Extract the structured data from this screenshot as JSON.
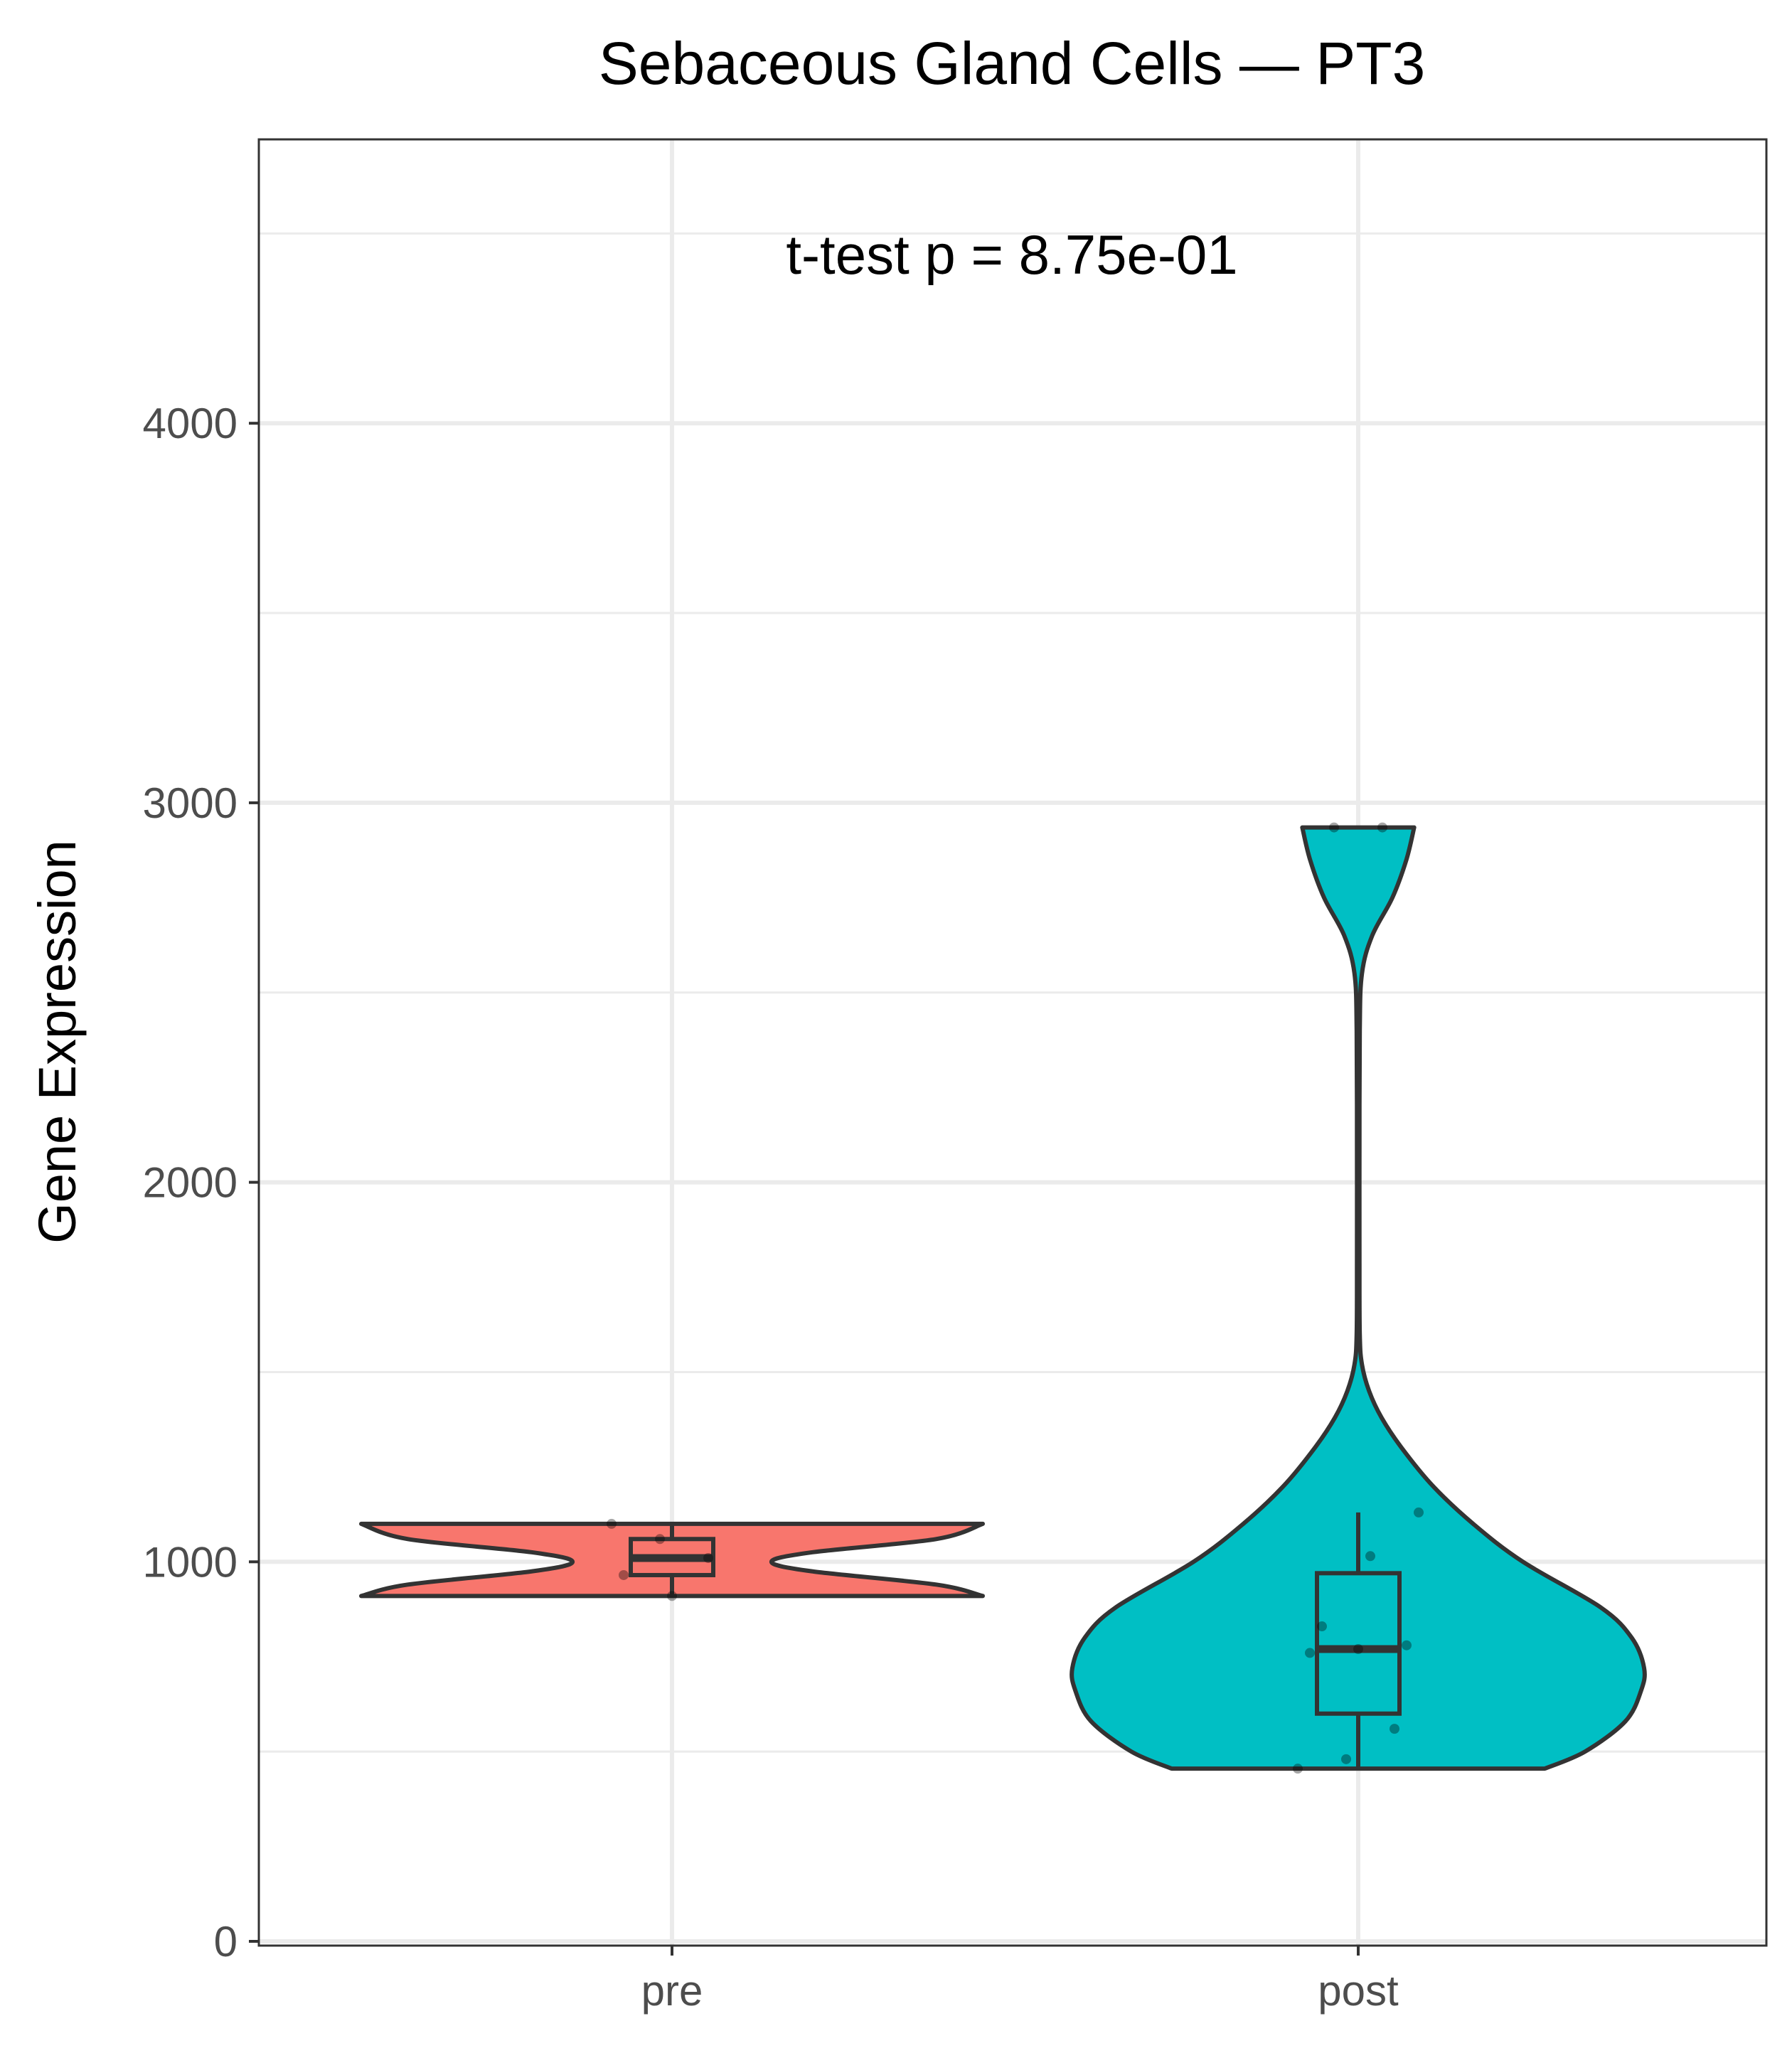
{
  "chart_data": {
    "type": "violin",
    "title": "Sebaceous Gland Cells — PT3",
    "xlabel": "",
    "ylabel": "Gene Expression",
    "ylim": [
      0,
      4700
    ],
    "yticks": [
      0,
      1000,
      2000,
      3000,
      4000
    ],
    "grid": true,
    "annotation": "t-test p = 8.75e-01",
    "colors": {
      "pre": "#F8766D",
      "post": "#00BFC4",
      "outline": "#333333",
      "panel_border": "#333333",
      "grid": "#ebebeb"
    },
    "categories": [
      "pre",
      "post"
    ],
    "groups": [
      {
        "name": "pre",
        "fill": "#F8766D",
        "violin_range": [
          910,
          1100
        ],
        "violin_density": [
          [
            910,
            1.0
          ],
          [
            940,
            0.85
          ],
          [
            975,
            0.45
          ],
          [
            1000,
            0.32
          ],
          [
            1025,
            0.45
          ],
          [
            1060,
            0.85
          ],
          [
            1100,
            1.0
          ]
        ],
        "box": {
          "q1": 965,
          "median": 1010,
          "q3": 1060,
          "whisker_low": 910,
          "whisker_high": 1100
        },
        "points": [
          1100,
          1060,
          1010,
          965,
          910
        ]
      },
      {
        "name": "post",
        "fill": "#00BFC4",
        "violin_range": [
          455,
          2935
        ],
        "violin_density": [
          [
            455,
            0.6
          ],
          [
            500,
            0.73
          ],
          [
            580,
            0.86
          ],
          [
            660,
            0.91
          ],
          [
            720,
            0.92
          ],
          [
            800,
            0.88
          ],
          [
            880,
            0.78
          ],
          [
            1000,
            0.53
          ],
          [
            1100,
            0.37
          ],
          [
            1200,
            0.24
          ],
          [
            1300,
            0.14
          ],
          [
            1380,
            0.075
          ],
          [
            1450,
            0.035
          ],
          [
            1520,
            0.012
          ],
          [
            1600,
            0.005
          ],
          [
            1800,
            0.004
          ],
          [
            2100,
            0.004
          ],
          [
            2400,
            0.005
          ],
          [
            2550,
            0.012
          ],
          [
            2650,
            0.045
          ],
          [
            2750,
            0.11
          ],
          [
            2850,
            0.155
          ],
          [
            2935,
            0.18
          ]
        ],
        "box": {
          "q1": 600,
          "median": 770,
          "q3": 970,
          "whisker_low": 455,
          "whisker_high": 1130
        },
        "points": [
          455,
          480,
          560,
          760,
          770,
          780,
          830,
          1015,
          1130,
          2935,
          2935
        ]
      }
    ]
  }
}
